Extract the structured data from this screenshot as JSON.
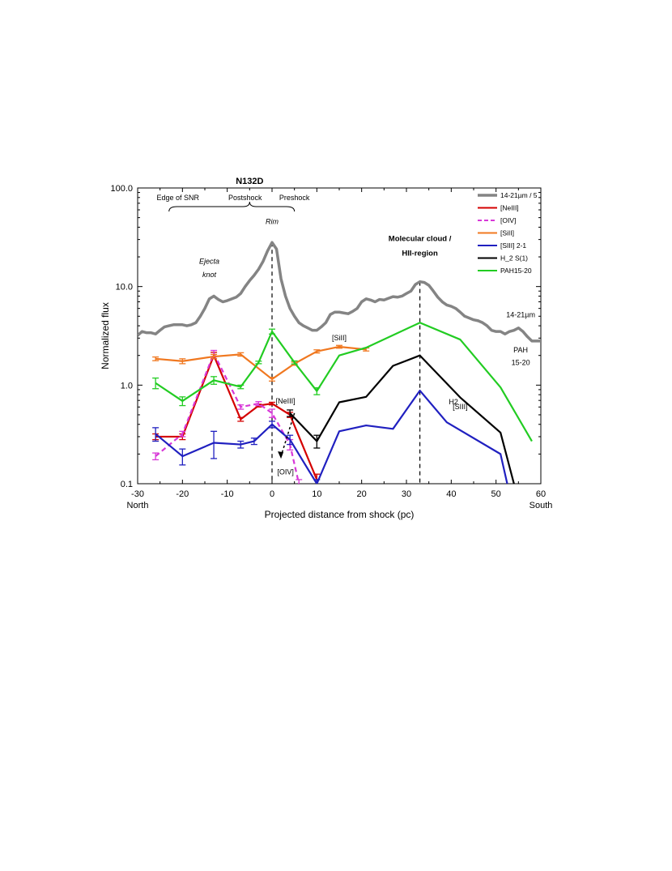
{
  "chart_data": {
    "type": "line",
    "xlabel": "Projected distance from shock (pc)",
    "ylabel": "Normalized flux",
    "xlim": [
      -30,
      60
    ],
    "ylim": [
      0.1,
      100
    ],
    "yscale": "log",
    "x_ticks": [
      -30,
      -20,
      -10,
      0,
      10,
      20,
      30,
      40,
      50,
      60
    ],
    "x_tick_labels": [
      "-30",
      "-20",
      "-10",
      "0",
      "10",
      "20",
      "30",
      "40",
      "50",
      "60"
    ],
    "y_ticks": [
      0.1,
      1,
      10,
      100
    ],
    "y_tick_labels": [
      "0.1",
      "1.0",
      "10.0",
      "100.0"
    ],
    "x_end_labels": {
      "left": "North",
      "right": "South"
    },
    "legend_placement": "top-right",
    "series": [
      {
        "name": "14-21µm / 5",
        "color": "#848484",
        "style": "solid",
        "width": 3.5,
        "x": [
          -30,
          -29,
          -28,
          -27,
          -26,
          -25,
          -24,
          -23,
          -22,
          -21,
          -20,
          -19,
          -18,
          -17,
          -16,
          -15,
          -14,
          -13,
          -12,
          -11,
          -10,
          -9,
          -8,
          -7,
          -6,
          -5,
          -4,
          -3,
          -2,
          -1,
          0,
          1,
          2,
          3,
          4,
          5,
          6,
          7,
          8,
          9,
          10,
          11,
          12,
          13,
          14,
          15,
          16,
          17,
          18,
          19,
          20,
          21,
          22,
          23,
          24,
          25,
          26,
          27,
          28,
          29,
          30,
          31,
          32,
          33,
          34,
          35,
          36,
          37,
          38,
          39,
          40,
          41,
          42,
          43,
          44,
          45,
          46,
          47,
          48,
          49,
          50,
          51,
          52,
          53,
          54,
          55,
          56,
          57,
          58,
          59,
          60
        ],
        "values": [
          3.2,
          3.5,
          3.4,
          3.4,
          3.3,
          3.6,
          3.9,
          4.0,
          4.1,
          4.1,
          4.1,
          4.0,
          4.1,
          4.3,
          5.0,
          6.0,
          7.5,
          8.0,
          7.4,
          7.0,
          7.2,
          7.5,
          7.8,
          8.5,
          10.0,
          11.5,
          13.0,
          15.0,
          18.0,
          23.0,
          28.0,
          24.0,
          12.0,
          8.0,
          6.0,
          5.0,
          4.3,
          4.0,
          3.8,
          3.6,
          3.6,
          3.9,
          4.3,
          5.2,
          5.5,
          5.5,
          5.4,
          5.3,
          5.6,
          6.0,
          7.0,
          7.5,
          7.3,
          7.0,
          7.4,
          7.3,
          7.6,
          7.9,
          7.8,
          8.0,
          8.5,
          9.0,
          10.5,
          11.2,
          11.0,
          10.3,
          9.0,
          7.8,
          7.0,
          6.5,
          6.3,
          6.0,
          5.5,
          5.0,
          4.8,
          4.6,
          4.5,
          4.3,
          4.0,
          3.6,
          3.5,
          3.5,
          3.3,
          3.5,
          3.6,
          3.8,
          3.5,
          3.1,
          2.8,
          2.8,
          2.8
        ]
      },
      {
        "name": "[NeIII]",
        "color": "#d40000",
        "style": "solid",
        "width": 2.2,
        "x": [
          -26,
          -20,
          -13,
          -7,
          -3,
          0,
          4,
          10
        ],
        "values": [
          0.3,
          0.3,
          2.0,
          0.45,
          0.62,
          0.65,
          0.5,
          0.11
        ],
        "errors": [
          0.02,
          0.02,
          0.15,
          0.02,
          0.02,
          0.02,
          0.03,
          0.015
        ]
      },
      {
        "name": "[OIV]",
        "color": "#d838d8",
        "style": "dashed",
        "width": 2.2,
        "x": [
          -26,
          -20,
          -13,
          -7,
          -3,
          0,
          4,
          6
        ],
        "values": [
          0.19,
          0.32,
          2.1,
          0.6,
          0.65,
          0.52,
          0.25,
          0.1
        ],
        "errors": [
          0.015,
          0.02,
          0.15,
          0.03,
          0.03,
          0.05,
          0.03,
          0.01
        ]
      },
      {
        "name": "[SiII]",
        "color": "#f07820",
        "style": "solid",
        "width": 2.2,
        "x": [
          -26,
          -20,
          -13,
          -7,
          0,
          5,
          10,
          15,
          21
        ],
        "values": [
          1.85,
          1.75,
          1.95,
          2.05,
          1.15,
          1.65,
          2.2,
          2.45,
          2.3
        ],
        "errors": [
          0.08,
          0.1,
          0.1,
          0.08,
          0.05,
          0.06,
          0.08,
          0.08,
          0.08
        ]
      },
      {
        "name": "[SIII] 2-1",
        "color": "#2020c0",
        "style": "solid",
        "width": 2.2,
        "x": [
          -26,
          -20,
          -13,
          -7,
          -4,
          0,
          4,
          10,
          15,
          21,
          27,
          33,
          39,
          51,
          52.5
        ],
        "values": [
          0.32,
          0.19,
          0.26,
          0.25,
          0.27,
          0.4,
          0.28,
          0.1,
          0.34,
          0.39,
          0.36,
          0.88,
          0.42,
          0.2,
          0.1
        ],
        "errors": [
          0.05,
          0.035,
          0.08,
          0.02,
          0.02,
          0.03,
          0.03,
          0.01,
          null,
          null,
          null,
          null,
          null,
          null,
          null
        ]
      },
      {
        "name": "H_2 S(1)",
        "color": "#000000",
        "style": "solid",
        "width": 2.2,
        "x": [
          4,
          10,
          15,
          21,
          27,
          33,
          42,
          51,
          54
        ],
        "values": [
          0.52,
          0.27,
          0.67,
          0.76,
          1.57,
          2.0,
          0.75,
          0.33,
          0.1
        ],
        "errors": [
          0.04,
          0.04,
          null,
          null,
          null,
          null,
          null,
          null,
          null
        ]
      },
      {
        "name": "PAH15-20",
        "color": "#22cc22",
        "style": "solid",
        "width": 2.2,
        "x": [
          -26,
          -20,
          -13,
          -7,
          -3,
          0,
          5,
          10,
          15,
          21,
          33,
          42,
          51,
          58
        ],
        "values": [
          1.05,
          0.69,
          1.12,
          0.96,
          1.7,
          3.5,
          1.7,
          0.87,
          2.0,
          2.4,
          4.3,
          2.9,
          0.95,
          0.27
        ],
        "errors": [
          0.13,
          0.07,
          0.1,
          0.04,
          0.05,
          0.2,
          0.06,
          0.07,
          null,
          null,
          null,
          null,
          null,
          null
        ]
      }
    ],
    "annotations": [
      {
        "text": "N132D",
        "x": -5,
        "y": 110
      },
      {
        "text": "Edge of SNR",
        "x": -21,
        "y": 75
      },
      {
        "text": "Postshock",
        "x": -6,
        "y": 75
      },
      {
        "text": "Preshock",
        "x": 5,
        "y": 75
      },
      {
        "text": "Rim",
        "x": 0,
        "y": 43
      },
      {
        "text": "Ejecta",
        "x": -14,
        "y": 17
      },
      {
        "text": "knot",
        "x": -14,
        "y": 12.5
      },
      {
        "text": "Molecular cloud /",
        "x": 33,
        "y": 29
      },
      {
        "text": "HII-region",
        "x": 33,
        "y": 20.5
      },
      {
        "text": "14-21µm",
        "x": 55.5,
        "y": 4.9
      },
      {
        "text": "PAH",
        "x": 55.5,
        "y": 2.15
      },
      {
        "text": "15-20",
        "x": 55.5,
        "y": 1.6
      },
      {
        "text": "H2",
        "x": 40.5,
        "y": 0.64
      },
      {
        "text": "[SiII]",
        "x": 15,
        "y": 2.85
      },
      {
        "text": "[NeIII]",
        "x": 3,
        "y": 0.65
      },
      {
        "text": "[SIII]",
        "x": 42,
        "y": 0.57
      },
      {
        "text": "[OIV]",
        "x": 3,
        "y": 0.124
      }
    ],
    "vlines": [
      0,
      33
    ]
  }
}
